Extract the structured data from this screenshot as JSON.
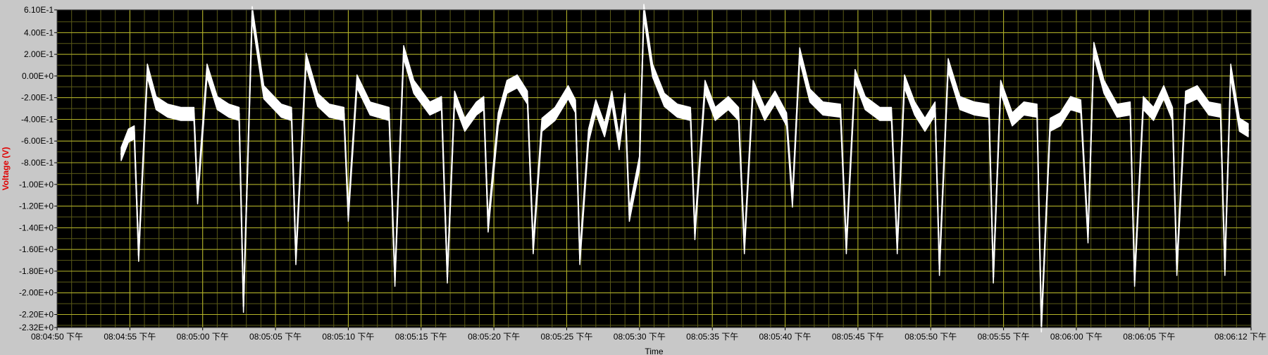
{
  "chart_data": {
    "type": "line",
    "title": "",
    "xlabel": "Time",
    "ylabel": "Voltage (V)",
    "ylim": [
      -2.32,
      0.61
    ],
    "yticks": [
      {
        "value": 0.61,
        "label": "6.10E-1"
      },
      {
        "value": 0.4,
        "label": "4.00E-1"
      },
      {
        "value": 0.2,
        "label": "2.00E-1"
      },
      {
        "value": 0.0,
        "label": "0.00E+0"
      },
      {
        "value": -0.2,
        "label": "-2.00E-1"
      },
      {
        "value": -0.4,
        "label": "-4.00E-1"
      },
      {
        "value": -0.6,
        "label": "-6.00E-1"
      },
      {
        "value": -0.8,
        "label": "-8.00E-1"
      },
      {
        "value": -1.0,
        "label": "-1.00E+0"
      },
      {
        "value": -1.2,
        "label": "-1.20E+0"
      },
      {
        "value": -1.4,
        "label": "-1.40E+0"
      },
      {
        "value": -1.6,
        "label": "-1.60E+0"
      },
      {
        "value": -1.8,
        "label": "-1.80E+0"
      },
      {
        "value": -2.0,
        "label": "-2.00E+0"
      },
      {
        "value": -2.2,
        "label": "-2.20E+0"
      },
      {
        "value": -2.32,
        "label": "-2.32E+0"
      }
    ],
    "xlim": [
      0,
      82
    ],
    "xticks": [
      {
        "value": 0,
        "label": "08:04:50 下午"
      },
      {
        "value": 5,
        "label": "08:04:55 下午"
      },
      {
        "value": 10,
        "label": "08:05:00 下午"
      },
      {
        "value": 15,
        "label": "08:05:05 下午"
      },
      {
        "value": 20,
        "label": "08:05:10 下午"
      },
      {
        "value": 25,
        "label": "08:05:15 下午"
      },
      {
        "value": 30,
        "label": "08:05:20 下午"
      },
      {
        "value": 35,
        "label": "08:05:25 下午"
      },
      {
        "value": 40,
        "label": "08:05:30 下午"
      },
      {
        "value": 45,
        "label": "08:05:35 下午"
      },
      {
        "value": 50,
        "label": "08:05:40 下午"
      },
      {
        "value": 55,
        "label": "08:05:45 下午"
      },
      {
        "value": 60,
        "label": "08:05:50 下午"
      },
      {
        "value": 65,
        "label": "08:05:55 下午"
      },
      {
        "value": 70,
        "label": "08:06:00 下午"
      },
      {
        "value": 75,
        "label": "08:06:05 下午"
      },
      {
        "value": 82,
        "label": "08:06:12 下午"
      }
    ],
    "grid": true,
    "series": [
      {
        "name": "Voltage",
        "color": "#ffffff",
        "band_width": 0.06,
        "points": [
          [
            4.4,
            -0.72
          ],
          [
            4.9,
            -0.55
          ],
          [
            5.3,
            -0.52
          ],
          [
            5.6,
            -1.65
          ],
          [
            6.2,
            0.05
          ],
          [
            6.8,
            -0.25
          ],
          [
            7.6,
            -0.32
          ],
          [
            8.5,
            -0.35
          ],
          [
            9.4,
            -0.35
          ],
          [
            9.65,
            -1.12
          ],
          [
            10.3,
            0.05
          ],
          [
            11.0,
            -0.25
          ],
          [
            11.8,
            -0.32
          ],
          [
            12.5,
            -0.35
          ],
          [
            12.8,
            -2.12
          ],
          [
            13.4,
            0.58
          ],
          [
            14.2,
            -0.15
          ],
          [
            15.4,
            -0.32
          ],
          [
            16.1,
            -0.35
          ],
          [
            16.4,
            -1.68
          ],
          [
            17.1,
            0.15
          ],
          [
            17.9,
            -0.22
          ],
          [
            18.7,
            -0.32
          ],
          [
            19.7,
            -0.35
          ],
          [
            20.0,
            -1.28
          ],
          [
            20.6,
            -0.05
          ],
          [
            21.5,
            -0.3
          ],
          [
            22.8,
            -0.35
          ],
          [
            23.2,
            -1.88
          ],
          [
            23.8,
            0.22
          ],
          [
            24.5,
            -0.1
          ],
          [
            25.6,
            -0.3
          ],
          [
            26.4,
            -0.25
          ],
          [
            26.8,
            -1.85
          ],
          [
            27.3,
            -0.2
          ],
          [
            28.0,
            -0.45
          ],
          [
            28.8,
            -0.3
          ],
          [
            29.3,
            -0.25
          ],
          [
            29.6,
            -1.38
          ],
          [
            30.3,
            -0.4
          ],
          [
            30.9,
            -0.1
          ],
          [
            31.6,
            -0.05
          ],
          [
            32.3,
            -0.2
          ],
          [
            32.7,
            -1.58
          ],
          [
            33.3,
            -0.45
          ],
          [
            34.2,
            -0.35
          ],
          [
            35.1,
            -0.15
          ],
          [
            35.6,
            -0.28
          ],
          [
            35.9,
            -1.68
          ],
          [
            36.5,
            -0.55
          ],
          [
            37.0,
            -0.28
          ],
          [
            37.6,
            -0.5
          ],
          [
            38.1,
            -0.2
          ],
          [
            38.6,
            -0.62
          ],
          [
            39.0,
            -0.22
          ],
          [
            39.3,
            -1.28
          ],
          [
            40.0,
            -0.8
          ],
          [
            40.3,
            0.6
          ],
          [
            40.9,
            0.05
          ],
          [
            41.7,
            -0.22
          ],
          [
            42.6,
            -0.32
          ],
          [
            43.5,
            -0.35
          ],
          [
            43.8,
            -1.45
          ],
          [
            44.5,
            -0.1
          ],
          [
            45.2,
            -0.35
          ],
          [
            46.1,
            -0.25
          ],
          [
            46.8,
            -0.35
          ],
          [
            47.2,
            -1.58
          ],
          [
            47.8,
            -0.1
          ],
          [
            48.6,
            -0.35
          ],
          [
            49.3,
            -0.2
          ],
          [
            50.1,
            -0.4
          ],
          [
            50.5,
            -1.15
          ],
          [
            51.0,
            0.2
          ],
          [
            51.7,
            -0.18
          ],
          [
            52.6,
            -0.3
          ],
          [
            53.8,
            -0.32
          ],
          [
            54.2,
            -1.58
          ],
          [
            54.8,
            -0.0
          ],
          [
            55.5,
            -0.25
          ],
          [
            56.5,
            -0.35
          ],
          [
            57.3,
            -0.35
          ],
          [
            57.7,
            -1.58
          ],
          [
            58.2,
            -0.05
          ],
          [
            58.9,
            -0.3
          ],
          [
            59.6,
            -0.45
          ],
          [
            60.3,
            -0.3
          ],
          [
            60.6,
            -1.78
          ],
          [
            61.2,
            0.1
          ],
          [
            62.0,
            -0.25
          ],
          [
            63.0,
            -0.3
          ],
          [
            64.0,
            -0.32
          ],
          [
            64.3,
            -1.85
          ],
          [
            64.8,
            -0.1
          ],
          [
            65.6,
            -0.4
          ],
          [
            66.4,
            -0.3
          ],
          [
            67.3,
            -0.32
          ],
          [
            67.6,
            -2.3
          ],
          [
            68.2,
            -0.45
          ],
          [
            68.9,
            -0.4
          ],
          [
            69.6,
            -0.25
          ],
          [
            70.3,
            -0.28
          ],
          [
            70.8,
            -1.48
          ],
          [
            71.2,
            0.25
          ],
          [
            71.9,
            -0.1
          ],
          [
            72.8,
            -0.32
          ],
          [
            73.7,
            -0.3
          ],
          [
            74.0,
            -1.88
          ],
          [
            74.6,
            -0.25
          ],
          [
            75.3,
            -0.35
          ],
          [
            76.0,
            -0.15
          ],
          [
            76.6,
            -0.35
          ],
          [
            76.9,
            -1.78
          ],
          [
            77.5,
            -0.2
          ],
          [
            78.3,
            -0.15
          ],
          [
            79.1,
            -0.3
          ],
          [
            79.9,
            -0.32
          ],
          [
            80.2,
            -1.78
          ],
          [
            80.6,
            0.05
          ],
          [
            81.2,
            -0.45
          ],
          [
            81.8,
            -0.5
          ]
        ]
      }
    ],
    "colors": {
      "plot_background": "#000000",
      "grid_major": "#b5b52a",
      "grid_minor": "#5a5a18",
      "ylabel_color": "#e00000",
      "panel": "#c8c8c8"
    }
  }
}
